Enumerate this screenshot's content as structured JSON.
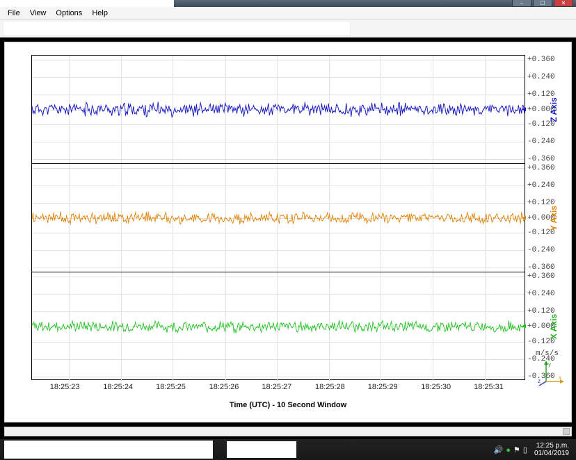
{
  "window": {
    "controls": {
      "minimize": "–",
      "maximize": "☐",
      "close": "✕"
    }
  },
  "menu": {
    "items": [
      "File",
      "View",
      "Options",
      "Help"
    ]
  },
  "chart": {
    "x_label": "Time (UTC) - 10 Second Window",
    "x_ticks": [
      "18:25:23",
      "18:25:24",
      "18:25:25",
      "18:25:26",
      "18:25:27",
      "18:25:28",
      "18:25:29",
      "18:25:30",
      "18:25:31"
    ],
    "x_tick_pct": [
      7.5,
      18.1,
      28.6,
      39.2,
      49.7,
      60.3,
      70.8,
      81.4,
      91.9
    ],
    "y_ticks": [
      "+0.360",
      "+0.240",
      "+0.120",
      "+0.000",
      "-0.120",
      "-0.240",
      "-0.360"
    ],
    "y_tick_pct": [
      4,
      20,
      36,
      50,
      64,
      80,
      96
    ],
    "y_units": "m/s/s",
    "ylim": [
      -0.36,
      0.36
    ],
    "v_grid_pct": [
      7.5,
      18.1,
      28.6,
      39.2,
      49.7,
      60.3,
      70.8,
      81.4,
      91.9
    ],
    "h_grid_pct": [
      4,
      20,
      36,
      50,
      64,
      80,
      96
    ],
    "panels": [
      {
        "name": "Z Axis",
        "class": "z-ax",
        "stroke": "#1818c0",
        "stroke_width": 1.3,
        "noise_amp": 0.035,
        "seed": 11
      },
      {
        "name": "Y Axis",
        "class": "y-ax",
        "stroke": "#e08000",
        "stroke_width": 1.2,
        "noise_amp": 0.03,
        "seed": 47
      },
      {
        "name": "X Axis",
        "class": "x-ax",
        "stroke": "#20c020",
        "stroke_width": 1.2,
        "noise_amp": 0.028,
        "seed": 93
      }
    ],
    "background": "#ffffff",
    "grid_color": "#e2e2e2",
    "border_color": "#000000"
  },
  "gizmo": {
    "x_color": "#d0a020",
    "y_color": "#30a030",
    "z_color": "#3040c0"
  },
  "taskbar": {
    "time": "12:25 p.m.",
    "date": "01/04/2019",
    "tray_icons": [
      {
        "name": "speaker-icon",
        "glyph": "🔊",
        "color": "#eeeeee"
      },
      {
        "name": "network-icon",
        "glyph": "●",
        "color": "#40c040"
      },
      {
        "name": "flag-icon",
        "glyph": "⚑",
        "color": "#eeeeee"
      },
      {
        "name": "power-icon",
        "glyph": "▯",
        "color": "#eeeeee"
      }
    ]
  }
}
